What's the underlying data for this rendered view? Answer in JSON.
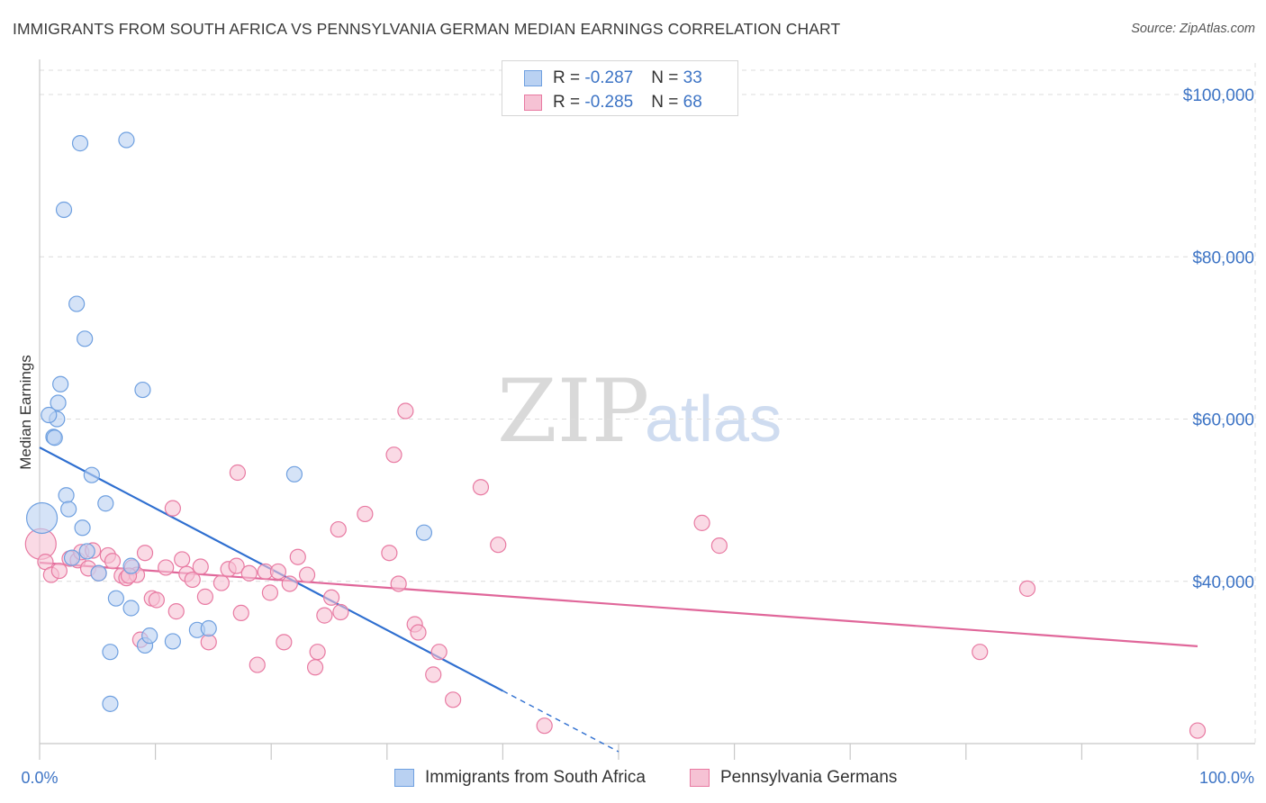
{
  "title": "IMMIGRANTS FROM SOUTH AFRICA VS PENNSYLVANIA GERMAN MEDIAN EARNINGS CORRELATION CHART",
  "source": "Source: ZipAtlas.com",
  "watermark": {
    "zip": "ZIP",
    "atlas": "atlas"
  },
  "colors": {
    "blue": "#6fa0e0",
    "blue_fill": "#b9d1f2",
    "pink": "#e87aa2",
    "pink_fill": "#f6c2d4",
    "blue_line": "#2f6fd0",
    "pink_line": "#e0679a",
    "accent_text": "#3d74c5"
  },
  "legend": {
    "blue": {
      "r_label": "R = ",
      "r_value": "-0.287",
      "n_label": "N = ",
      "n_value": "33"
    },
    "pink": {
      "r_label": "R = ",
      "r_value": "-0.285",
      "n_label": "N = ",
      "n_value": "68"
    }
  },
  "chart_data": {
    "type": "scatter",
    "title": "IMMIGRANTS FROM SOUTH AFRICA VS PENNSYLVANIA GERMAN MEDIAN EARNINGS CORRELATION CHART",
    "xlabel": "",
    "ylabel": "Median Earnings",
    "xlim": [
      0,
      100
    ],
    "ylim": [
      20000,
      103000
    ],
    "x_tick_labels": [
      "0.0%",
      "100.0%"
    ],
    "y_ticks": [
      40000,
      60000,
      80000,
      100000
    ],
    "y_tick_labels": [
      "$40,000",
      "$60,000",
      "$80,000",
      "$100,000"
    ],
    "grid": true,
    "series": [
      {
        "name": "Immigrants from South Africa",
        "color": "#6fa0e0",
        "points": [
          [
            0.2,
            47800
          ],
          [
            1.5,
            60000
          ],
          [
            0.8,
            60500
          ],
          [
            1.2,
            57800
          ],
          [
            1.3,
            57700
          ],
          [
            1.6,
            62000
          ],
          [
            1.8,
            64300
          ],
          [
            2.1,
            85800
          ],
          [
            2.3,
            50600
          ],
          [
            2.5,
            48900
          ],
          [
            2.8,
            42900
          ],
          [
            3.2,
            74200
          ],
          [
            3.5,
            94000
          ],
          [
            3.7,
            46600
          ],
          [
            3.9,
            69900
          ],
          [
            4.1,
            43700
          ],
          [
            4.5,
            53100
          ],
          [
            5.1,
            41000
          ],
          [
            5.7,
            49600
          ],
          [
            6.1,
            31300
          ],
          [
            6.1,
            24900
          ],
          [
            6.6,
            37900
          ],
          [
            7.5,
            94400
          ],
          [
            7.9,
            41900
          ],
          [
            7.9,
            36700
          ],
          [
            8.9,
            63600
          ],
          [
            9.1,
            32100
          ],
          [
            9.5,
            33300
          ],
          [
            11.5,
            32600
          ],
          [
            13.6,
            34000
          ],
          [
            14.6,
            34200
          ],
          [
            22.0,
            53200
          ],
          [
            33.2,
            46000
          ]
        ],
        "trend": {
          "x": [
            0,
            40
          ],
          "y": [
            56500,
            26500
          ],
          "dashed_to": {
            "x": [
              40,
              50
            ],
            "y": [
              26500,
              19000
            ]
          }
        }
      },
      {
        "name": "Pennsylvania Germans",
        "color": "#e87aa2",
        "points": [
          [
            0.1,
            44600
          ],
          [
            0.5,
            42400
          ],
          [
            1.0,
            40800
          ],
          [
            1.7,
            41300
          ],
          [
            2.6,
            42800
          ],
          [
            3.3,
            42600
          ],
          [
            3.6,
            43600
          ],
          [
            4.2,
            41600
          ],
          [
            4.6,
            43800
          ],
          [
            5.1,
            41000
          ],
          [
            5.9,
            43200
          ],
          [
            6.3,
            42500
          ],
          [
            7.1,
            40700
          ],
          [
            7.5,
            40400
          ],
          [
            8.0,
            41700
          ],
          [
            8.4,
            40800
          ],
          [
            8.7,
            32800
          ],
          [
            9.1,
            43500
          ],
          [
            9.7,
            37900
          ],
          [
            10.1,
            37700
          ],
          [
            10.9,
            41700
          ],
          [
            11.5,
            49000
          ],
          [
            11.8,
            36300
          ],
          [
            12.3,
            42700
          ],
          [
            12.7,
            40900
          ],
          [
            13.2,
            40200
          ],
          [
            13.9,
            41800
          ],
          [
            14.3,
            38100
          ],
          [
            14.6,
            32500
          ],
          [
            15.7,
            39800
          ],
          [
            16.3,
            41500
          ],
          [
            17.0,
            41900
          ],
          [
            17.1,
            53400
          ],
          [
            17.4,
            36100
          ],
          [
            18.1,
            41000
          ],
          [
            18.8,
            29700
          ],
          [
            19.5,
            41200
          ],
          [
            19.9,
            38600
          ],
          [
            20.6,
            41200
          ],
          [
            21.1,
            32500
          ],
          [
            21.6,
            39700
          ],
          [
            22.3,
            43000
          ],
          [
            23.1,
            40800
          ],
          [
            23.8,
            29400
          ],
          [
            24.0,
            31300
          ],
          [
            24.6,
            35800
          ],
          [
            25.2,
            38000
          ],
          [
            25.8,
            46400
          ],
          [
            26.0,
            36200
          ],
          [
            28.1,
            48300
          ],
          [
            30.2,
            43500
          ],
          [
            31.0,
            39700
          ],
          [
            31.6,
            61000
          ],
          [
            32.4,
            34700
          ],
          [
            32.7,
            33700
          ],
          [
            30.6,
            55600
          ],
          [
            34.0,
            28500
          ],
          [
            34.5,
            31300
          ],
          [
            35.7,
            25400
          ],
          [
            38.1,
            51600
          ],
          [
            39.6,
            44500
          ],
          [
            43.6,
            22200
          ],
          [
            57.2,
            47200
          ],
          [
            58.7,
            44400
          ],
          [
            81.2,
            31300
          ],
          [
            85.3,
            39100
          ],
          [
            100.0,
            21600
          ],
          [
            7.7,
            40700
          ]
        ],
        "trend": {
          "x": [
            0,
            100
          ],
          "y": [
            42300,
            32000
          ]
        }
      }
    ]
  },
  "bottom_legend": [
    {
      "label": "Immigrants from South Africa"
    },
    {
      "label": "Pennsylvania Germans"
    }
  ]
}
